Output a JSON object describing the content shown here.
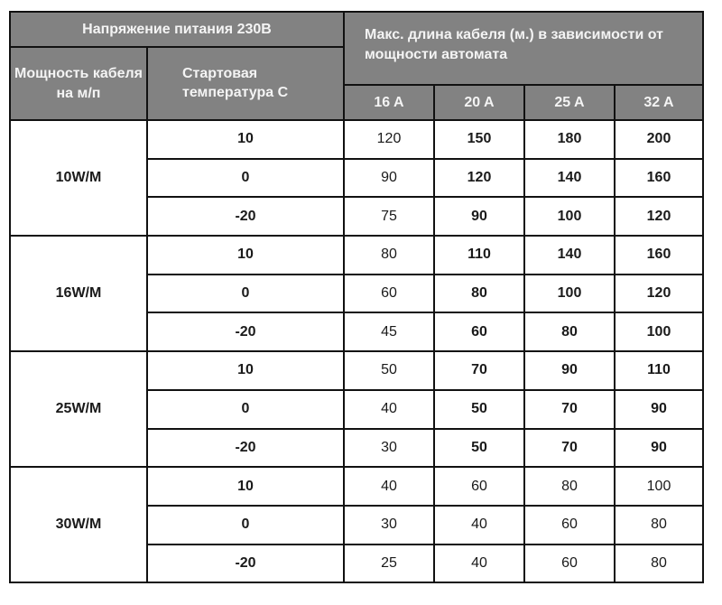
{
  "header": {
    "voltage": "Напряжение питания 230В",
    "cable_power": "Мощность кабеля на м/п",
    "start_temp": "Стартовая температура С",
    "max_length": "Макс. длина кабеля (м.) в зависимости от мощности автомата",
    "amps": [
      "16 A",
      "20 A",
      "25 A",
      "32 A"
    ]
  },
  "colors": {
    "header_bg": "#828282",
    "header_text": "#f4f4f4",
    "border": "#111111"
  },
  "groups": [
    {
      "power": "10W/M",
      "rows": [
        {
          "temp": "10",
          "values": [
            "120",
            "150",
            "180",
            "200"
          ]
        },
        {
          "temp": "0",
          "values": [
            "90",
            "120",
            "140",
            "160"
          ]
        },
        {
          "temp": "-20",
          "values": [
            "75",
            "90",
            "100",
            "120"
          ]
        }
      ]
    },
    {
      "power": "16W/M",
      "rows": [
        {
          "temp": "10",
          "values": [
            "80",
            "110",
            "140",
            "160"
          ]
        },
        {
          "temp": "0",
          "values": [
            "60",
            "80",
            "100",
            "120"
          ]
        },
        {
          "temp": "-20",
          "values": [
            "45",
            "60",
            "80",
            "100"
          ]
        }
      ]
    },
    {
      "power": "25W/M",
      "rows": [
        {
          "temp": "10",
          "values": [
            "50",
            "70",
            "90",
            "110"
          ]
        },
        {
          "temp": "0",
          "values": [
            "40",
            "50",
            "70",
            "90"
          ]
        },
        {
          "temp": "-20",
          "values": [
            "30",
            "50",
            "70",
            "90"
          ]
        }
      ]
    },
    {
      "power": "30W/M",
      "rows": [
        {
          "temp": "10",
          "values": [
            "40",
            "60",
            "80",
            "100"
          ]
        },
        {
          "temp": "0",
          "values": [
            "30",
            "40",
            "60",
            "80"
          ]
        },
        {
          "temp": "-20",
          "values": [
            "25",
            "40",
            "60",
            "80"
          ]
        }
      ]
    }
  ]
}
